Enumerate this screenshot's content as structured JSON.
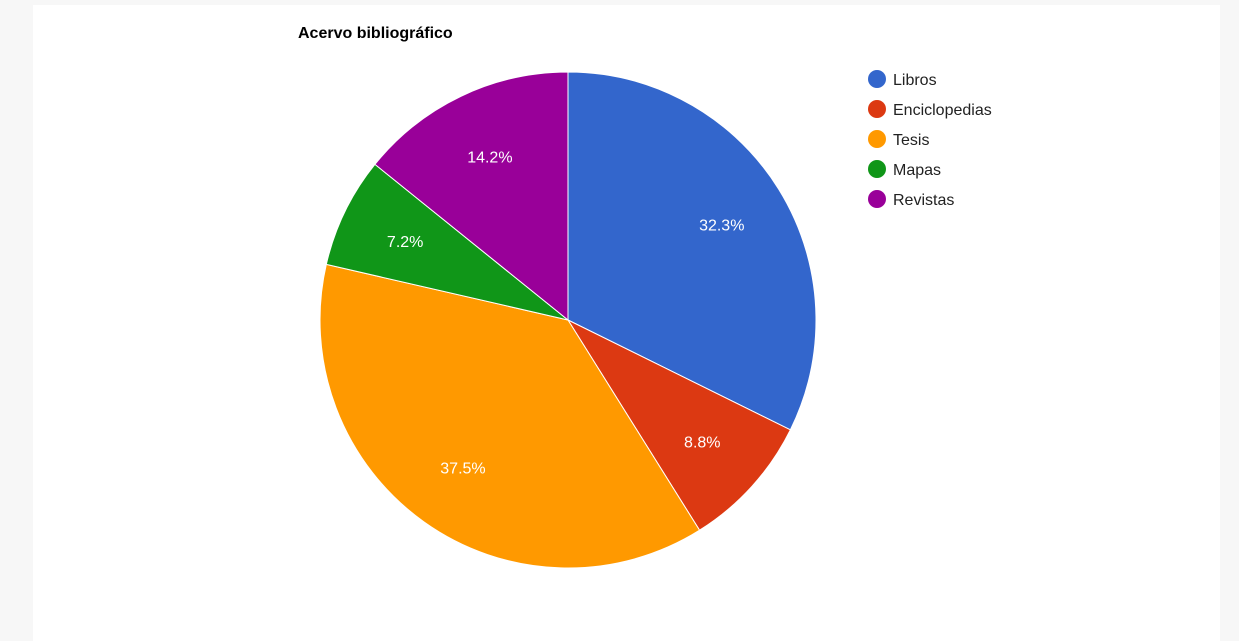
{
  "chart_data": {
    "type": "pie",
    "title": "Acervo bibliográfico",
    "legend_position": "right",
    "slices": [
      {
        "name": "Libros",
        "value": 32.3,
        "label": "32.3%",
        "color": "#3366cc"
      },
      {
        "name": "Enciclopedias",
        "value": 8.8,
        "label": "8.8%",
        "color": "#dc3912"
      },
      {
        "name": "Tesis",
        "value": 37.5,
        "label": "37.5%",
        "color": "#ff9900"
      },
      {
        "name": "Mapas",
        "value": 7.2,
        "label": "7.2%",
        "color": "#109618"
      },
      {
        "name": "Revistas",
        "value": 14.2,
        "label": "14.2%",
        "color": "#990099"
      }
    ]
  }
}
